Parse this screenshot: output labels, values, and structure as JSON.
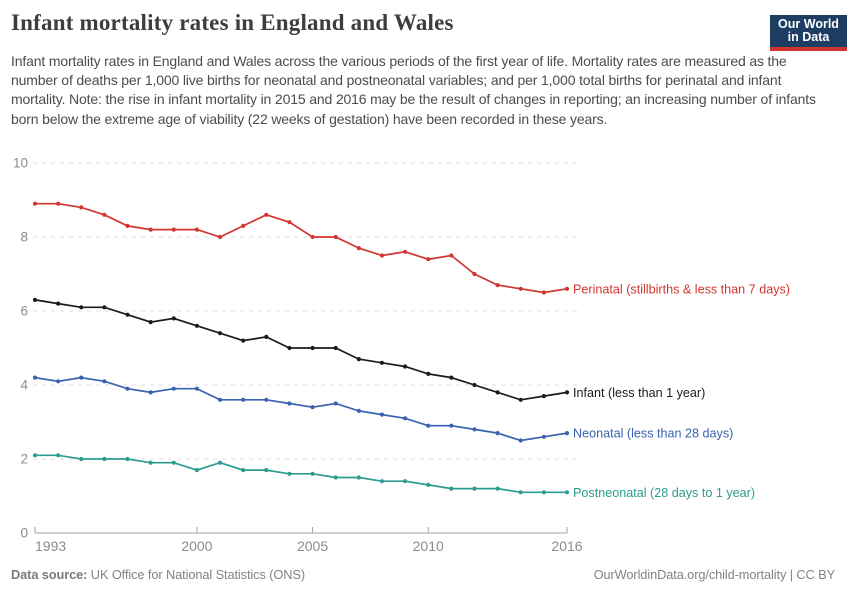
{
  "header": {
    "title": "Infant mortality rates in England and Wales",
    "subtitle": "Infant mortality rates in England and Wales across the various periods of the first year of life. Mortality rates are measured as the number of deaths per 1,000 live births for neonatal and postneonatal variables; and per 1,000 total births for perinatal and infant mortality. Note: the rise in infant mortality in 2015 and 2016 may be the result of changes in reporting; an increasing number of infants born below the extreme age of viability (22 weeks of gestation) have been recorded in these years.",
    "logo": {
      "line1": "Our World",
      "line2": "in Data"
    }
  },
  "chart_data": {
    "type": "line",
    "x": [
      1993,
      1994,
      1995,
      1996,
      1997,
      1998,
      1999,
      2000,
      2001,
      2002,
      2003,
      2004,
      2005,
      2006,
      2007,
      2008,
      2009,
      2010,
      2011,
      2012,
      2013,
      2014,
      2015,
      2016
    ],
    "x_ticks": [
      1993,
      2000,
      2005,
      2010,
      2016
    ],
    "y_ticks": [
      0,
      2,
      4,
      6,
      8,
      10
    ],
    "ylim": [
      0,
      10
    ],
    "xlabel": "",
    "ylabel": "",
    "grid": "dashed-horizontal",
    "legend_position": "right-end-labels",
    "series": [
      {
        "name": "Perinatal",
        "label": "Perinatal (stillbirths & less than 7 days)",
        "color": "#d2352f",
        "values": [
          8.9,
          8.9,
          8.8,
          8.6,
          8.3,
          8.2,
          8.2,
          8.2,
          8.0,
          8.3,
          8.6,
          8.4,
          8.0,
          8.0,
          7.7,
          7.5,
          7.6,
          7.4,
          7.5,
          7.0,
          6.7,
          6.6,
          6.5,
          6.6
        ]
      },
      {
        "name": "Infant",
        "label": "Infant (less than 1 year)",
        "color": "#1b1b1b",
        "values": [
          6.3,
          6.2,
          6.1,
          6.1,
          5.9,
          5.7,
          5.8,
          5.6,
          5.4,
          5.2,
          5.3,
          5.0,
          5.0,
          5.0,
          4.7,
          4.6,
          4.5,
          4.3,
          4.2,
          4.0,
          3.8,
          3.6,
          3.7,
          3.8
        ]
      },
      {
        "name": "Neonatal",
        "label": "Neonatal (less than 28 days)",
        "color": "#3a62b0",
        "values": [
          4.2,
          4.1,
          4.2,
          4.1,
          3.9,
          3.8,
          3.9,
          3.9,
          3.6,
          3.6,
          3.6,
          3.5,
          3.4,
          3.5,
          3.3,
          3.2,
          3.1,
          2.9,
          2.9,
          2.8,
          2.7,
          2.5,
          2.6,
          2.7
        ]
      },
      {
        "name": "Postneonatal",
        "label": "Postneonatal (28 days to 1 year)",
        "color": "#2c9c91",
        "values": [
          2.1,
          2.1,
          2.0,
          2.0,
          2.0,
          1.9,
          1.9,
          1.7,
          1.9,
          1.7,
          1.7,
          1.6,
          1.6,
          1.5,
          1.5,
          1.4,
          1.4,
          1.3,
          1.2,
          1.2,
          1.2,
          1.1,
          1.1,
          1.1
        ]
      }
    ]
  },
  "footer": {
    "source_label": "Data source:",
    "source_value": "UK Office for National Statistics (ONS)",
    "credit": "OurWorldinData.org/child-mortality | CC BY"
  },
  "colors": {
    "logo_navy": "#1d3d63",
    "logo_stripe": "#d0342c",
    "perinatal_red": "#d2352f",
    "infant_black": "#1b1b1b",
    "neonatal_blue": "#3a62b0",
    "postneonatal_teal": "#2c9c91"
  }
}
